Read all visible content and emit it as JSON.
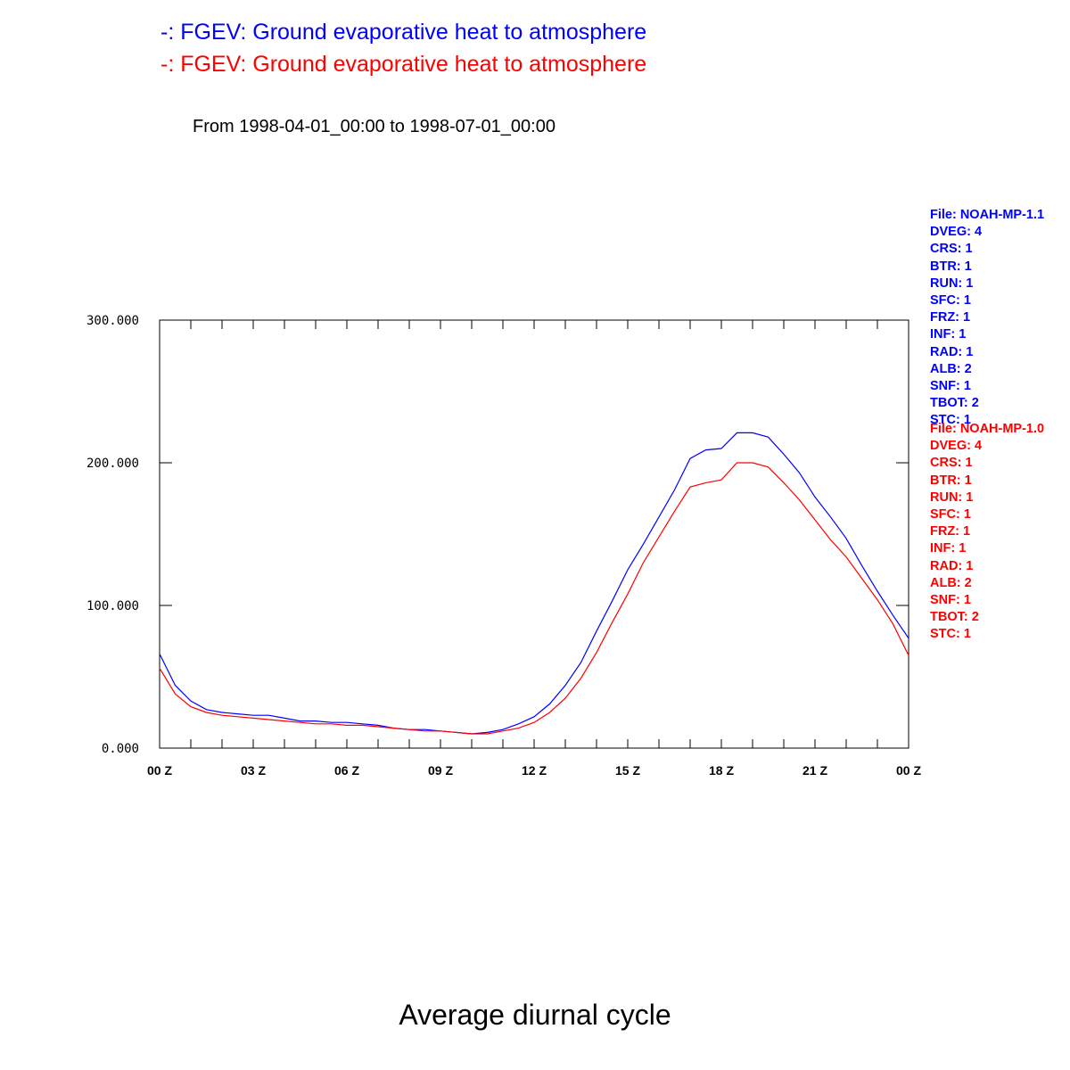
{
  "chart_data": {
    "type": "line",
    "titles": [
      {
        "text": "-: FGEV: Ground evaporative heat to atmosphere",
        "color": "#0000ff"
      },
      {
        "text": "-: FGEV: Ground evaporative heat to atmosphere",
        "color": "#ff0000"
      }
    ],
    "subtitle": "From 1998-04-01_00:00 to 1998-07-01_00:00",
    "footer": "Average diurnal cycle",
    "ylim": [
      0,
      300
    ],
    "y_ticks": [
      "0.000",
      "100.000",
      "200.000",
      "300.000"
    ],
    "y_tick_values": [
      0,
      100,
      200,
      300
    ],
    "xlim": [
      0,
      24
    ],
    "x_ticks": [
      "00 Z",
      "03 Z",
      "06 Z",
      "09 Z",
      "12 Z",
      "15 Z",
      "18 Z",
      "21 Z",
      "00 Z"
    ],
    "x_tick_values": [
      0,
      3,
      6,
      9,
      12,
      15,
      18,
      21,
      24
    ],
    "x": [
      0,
      0.5,
      1,
      1.5,
      2,
      2.5,
      3,
      3.5,
      4,
      4.5,
      5,
      5.5,
      6,
      6.5,
      7,
      7.5,
      8,
      8.5,
      9,
      9.5,
      10,
      10.5,
      11,
      11.5,
      12,
      12.5,
      13,
      13.5,
      14,
      14.5,
      15,
      15.5,
      16,
      16.5,
      17,
      17.5,
      18,
      18.5,
      19,
      19.5,
      20,
      20.5,
      21,
      21.5,
      22,
      22.5,
      23,
      23.5,
      24
    ],
    "series": [
      {
        "color": "#0000ff",
        "values": [
          66,
          44,
          33,
          27,
          25,
          24,
          23,
          23,
          21,
          19,
          19,
          18,
          18,
          17,
          16,
          14,
          13,
          13,
          12,
          11,
          10,
          11,
          13,
          17,
          22,
          31,
          44,
          60,
          82,
          103,
          125,
          143,
          162,
          181,
          203,
          209,
          210,
          221,
          221,
          218,
          206,
          193,
          176,
          162,
          147,
          128,
          110,
          93,
          77
        ]
      },
      {
        "color": "#ff0000",
        "values": [
          56,
          38,
          29,
          25,
          23,
          22,
          21,
          20,
          19,
          18,
          17,
          17,
          16,
          16,
          15,
          14,
          13,
          12,
          12,
          11,
          10,
          10,
          12,
          14,
          18,
          25,
          35,
          49,
          67,
          88,
          108,
          130,
          148,
          166,
          183,
          186,
          188,
          200,
          200,
          197,
          186,
          174,
          160,
          146,
          134,
          119,
          104,
          87,
          65
        ]
      }
    ],
    "grid": false
  },
  "legends": [
    {
      "color": "#0000ff",
      "items": [
        "File: NOAH-MP-1.1",
        "DVEG: 4",
        "CRS: 1",
        "BTR: 1",
        "RUN: 1",
        "SFC: 1",
        "FRZ: 1",
        "INF: 1",
        "RAD: 1",
        "ALB: 2",
        "SNF: 1",
        "TBOT: 2",
        "STC: 1"
      ]
    },
    {
      "color": "#ff0000",
      "items": [
        "File: NOAH-MP-1.0",
        "DVEG: 4",
        "CRS: 1",
        "BTR: 1",
        "RUN: 1",
        "SFC: 1",
        "FRZ: 1",
        "INF: 1",
        "RAD: 1",
        "ALB: 2",
        "SNF: 1",
        "TBOT: 2",
        "STC: 1"
      ]
    }
  ]
}
